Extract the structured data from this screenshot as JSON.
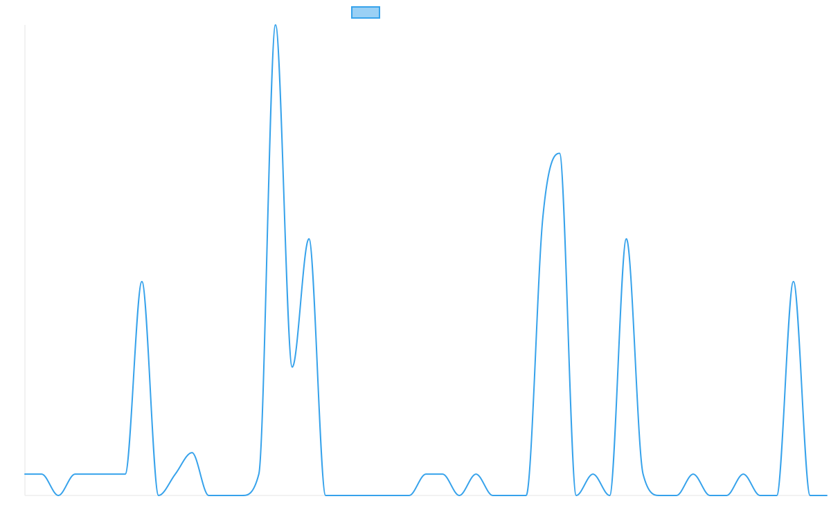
{
  "chart_data": {
    "type": "line",
    "title": "",
    "xlabel": "",
    "ylabel": "",
    "ylim": [
      0,
      22
    ],
    "grid": false,
    "legend": {
      "position": "top",
      "series": [
        {
          "name": ""
        }
      ]
    },
    "colors": {
      "line": "#36a2eb",
      "swatch_fill": "#9ad0f5",
      "axis": "#e5e5e5"
    },
    "series": [
      {
        "name": "",
        "values": [
          1,
          1,
          0,
          1,
          1,
          1,
          1,
          10,
          0,
          1,
          2,
          0,
          0,
          0,
          1,
          22,
          6,
          12,
          0,
          0,
          0,
          0,
          0,
          0,
          1,
          1,
          0,
          1,
          0,
          0,
          0,
          13,
          16,
          0,
          1,
          0,
          12,
          1,
          0,
          0,
          1,
          0,
          0,
          1,
          0,
          0,
          10,
          0,
          0
        ]
      }
    ]
  }
}
